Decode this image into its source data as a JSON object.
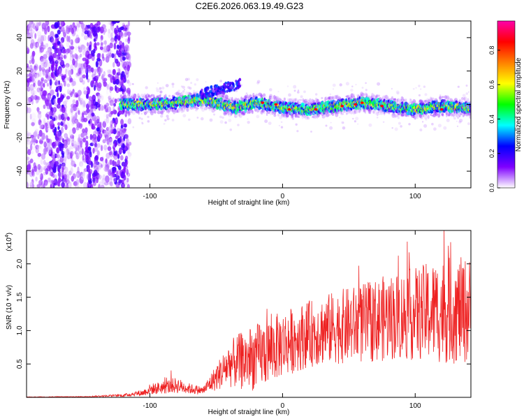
{
  "title": "C2E6.2026.063.19.49.G23",
  "colors": {
    "snr_line": "#ee2222",
    "axis": "#000000",
    "background": "#ffffff"
  },
  "chart_data": [
    {
      "type": "heatmap",
      "name": "spectrogram",
      "xlabel": "Height of straight line (km)",
      "ylabel": "Frequency (Hz)",
      "xlim": [
        -193,
        142
      ],
      "ylim": [
        -50,
        50
      ],
      "x_ticks": [
        -100,
        0,
        100
      ],
      "y_ticks": [
        -40,
        -20,
        0,
        20,
        40
      ],
      "colorbar": {
        "label": "Normalized spectral amplitude",
        "range": [
          0,
          0.97
        ],
        "ticks": [
          "0.0",
          "0.2",
          "0.4",
          "0.6",
          "0.8"
        ],
        "tick_values": [
          0,
          0.2,
          0.4,
          0.6,
          0.8
        ],
        "colormap": [
          "#ffffff",
          "#7f00ff",
          "#0000ff",
          "#00ffff",
          "#00ff00",
          "#ffff00",
          "#ff8000",
          "#ff0000",
          "#ff00aa"
        ]
      },
      "ridge": {
        "description_points_x": [
          -120,
          -100,
          -80,
          -60,
          -45,
          -35,
          -20,
          0,
          20,
          40,
          60,
          80,
          100,
          120,
          142
        ],
        "description_points_freq": [
          0,
          0,
          1,
          3,
          0,
          -2,
          1,
          -2,
          -3,
          -1,
          1,
          -1,
          -3,
          -1,
          -2
        ],
        "peak_amplitude_x": [
          -15,
          -5,
          5,
          25,
          45,
          55,
          60,
          75,
          120
        ],
        "peak_amplitude_freq": [
          1,
          0,
          -3,
          -3,
          -1,
          0,
          1,
          -1,
          -3
        ]
      },
      "noise_region_x": [
        -193,
        -115
      ]
    },
    {
      "type": "line",
      "name": "snr",
      "xlabel": "Height of straight line (km)",
      "ylabel": "SNR (10 * v/v)",
      "scale_label": "(x10",
      "scale_exponent": "4",
      "scale_suffix": ")",
      "xlim": [
        -193,
        142
      ],
      "ylim": [
        0,
        2.5
      ],
      "x_ticks": [
        -100,
        0,
        100
      ],
      "y_ticks": [
        0.5,
        1.0,
        1.5,
        2.0
      ],
      "y_tick_labels": [
        "0.5",
        "1.0",
        "1.5",
        "2.0"
      ],
      "series": [
        {
          "name": "SNR",
          "envelope_x": [
            -193,
            -150,
            -120,
            -105,
            -100,
            -90,
            -80,
            -70,
            -60,
            -50,
            -40,
            -30,
            -20,
            -10,
            0,
            20,
            40,
            60,
            80,
            100,
            120,
            142
          ],
          "envelope_mean": [
            0.005,
            0.01,
            0.03,
            0.07,
            0.12,
            0.15,
            0.18,
            0.13,
            0.1,
            0.3,
            0.5,
            0.55,
            0.6,
            0.7,
            0.8,
            0.95,
            1.05,
            1.1,
            1.2,
            1.25,
            1.3,
            1.3
          ],
          "envelope_spread": [
            0.005,
            0.005,
            0.02,
            0.05,
            0.08,
            0.1,
            0.12,
            0.08,
            0.06,
            0.2,
            0.35,
            0.45,
            0.5,
            0.5,
            0.5,
            0.5,
            0.55,
            0.6,
            0.65,
            0.7,
            0.8,
            0.8
          ],
          "max_value": 2.5
        }
      ]
    }
  ]
}
